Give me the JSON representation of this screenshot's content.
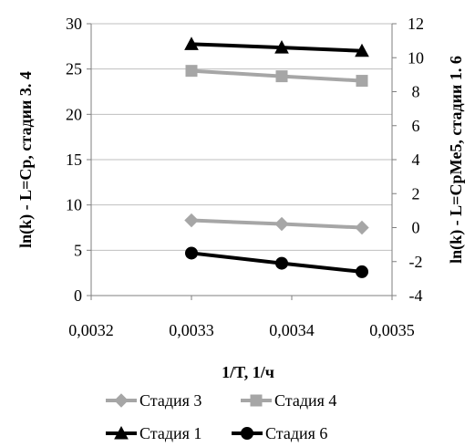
{
  "chart_data": {
    "type": "line",
    "x_axis": {
      "label": "1/T, 1/ч",
      "range": [
        0.0032,
        0.0035
      ],
      "ticks": [
        "0,0032",
        "0,0033",
        "0,0034",
        "0,0035"
      ]
    },
    "y_axis_left": {
      "label": "ln(k) - L=Cp, стадии 3. 4",
      "range": [
        0,
        30
      ],
      "ticks": [
        "0",
        "5",
        "10",
        "15",
        "20",
        "25",
        "30"
      ]
    },
    "y_axis_right": {
      "label": "ln(k) - L=CpMe5, стадии 1. 6",
      "range": [
        -4,
        12
      ],
      "ticks": [
        "-4",
        "-2",
        "0",
        "2",
        "4",
        "6",
        "8",
        "10",
        "12"
      ]
    },
    "grid": "horizontal",
    "legend_position": "bottom",
    "series": [
      {
        "name": "Стадия 3",
        "axis": "left",
        "marker": "diamond",
        "color": "#a6a6a6",
        "x": [
          0.0033,
          0.00339,
          0.00347
        ],
        "y": [
          8.3,
          7.9,
          7.5
        ]
      },
      {
        "name": "Стадия 4",
        "axis": "left",
        "marker": "square",
        "color": "#a6a6a6",
        "x": [
          0.0033,
          0.00339,
          0.00347
        ],
        "y": [
          24.8,
          24.2,
          23.7
        ]
      },
      {
        "name": "Стадия 1",
        "axis": "right",
        "marker": "triangle",
        "color": "#000000",
        "x": [
          0.0033,
          0.00339,
          0.00347
        ],
        "y": [
          10.8,
          10.6,
          10.4
        ]
      },
      {
        "name": "Стадия 6",
        "axis": "right",
        "marker": "circle",
        "color": "#000000",
        "x": [
          0.0033,
          0.00339,
          0.00347
        ],
        "y": [
          -1.5,
          -2.1,
          -2.6
        ]
      }
    ]
  }
}
